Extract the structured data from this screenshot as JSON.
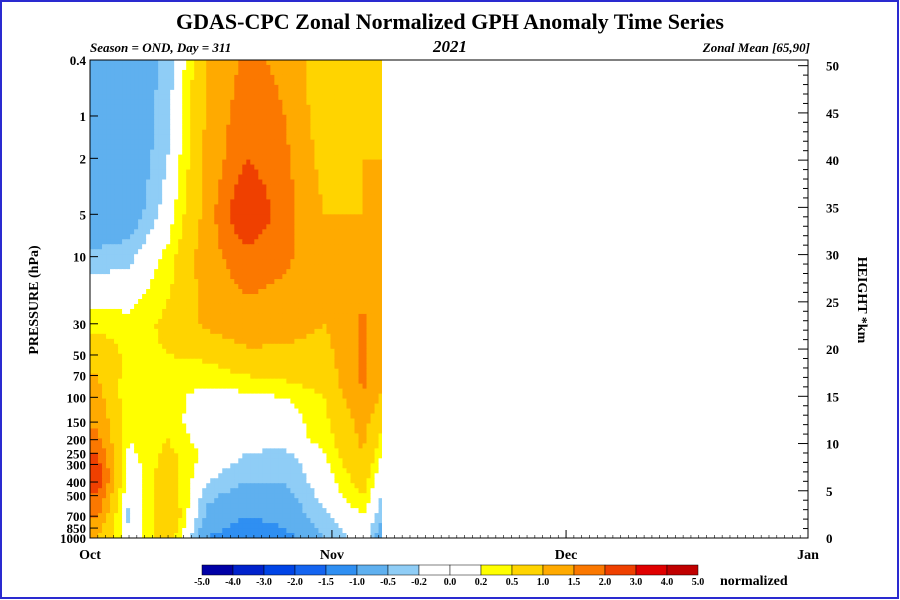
{
  "header": {
    "title": "GDAS-CPC Zonal Normalized GPH Anomaly Time Series",
    "left_subtitle": "Season = OND, Day = 311",
    "center_subtitle": "2021",
    "right_subtitle": "Zonal Mean [65,90]"
  },
  "colors": {
    "frame": "#2a2ad0",
    "neg_dark": [
      "#0000a6",
      "#0033dd",
      "#1464f0",
      "#2f8ff2",
      "#5fb0ef",
      "#8fcdf6",
      "#ffffff"
    ],
    "pos": [
      "#ffffff",
      "#ffff00",
      "#ffd400",
      "#ffaa00",
      "#fb7800",
      "#ef4000",
      "#e00000",
      "#c00000"
    ]
  },
  "chart_data": {
    "type": "heatmap",
    "title": "GDAS-CPC Zonal Normalized GPH Anomaly Time Series",
    "xlabel": "",
    "ylabel": "PRESSURE (hPa)",
    "y2label": "HEIGHT *km",
    "x_ticks": [
      "Oct",
      "Nov",
      "Dec",
      "Jan"
    ],
    "y_ticks": [
      "0.4",
      "1",
      "2",
      "5",
      "10",
      "30",
      "50",
      "70",
      "100",
      "150",
      "200",
      "250",
      "300",
      "400",
      "500",
      "700",
      "850",
      "1000"
    ],
    "y2_ticks": [
      "0",
      "5",
      "10",
      "15",
      "20",
      "25",
      "30",
      "35",
      "40",
      "45",
      "50"
    ],
    "colorbar": {
      "labels": [
        "-5.0",
        "-4.0",
        "-3.0",
        "-2.0",
        "-1.5",
        "-1.0",
        "-0.5",
        "-0.2",
        "0.0",
        "0.2",
        "0.5",
        "1.0",
        "1.5",
        "2.0",
        "3.0",
        "4.0",
        "5.0"
      ],
      "colors": [
        "#0000a6",
        "#0022cc",
        "#0044e6",
        "#1464f0",
        "#2f8ff2",
        "#5fb0ef",
        "#8fcdf6",
        "#ffffff",
        "#ffffff",
        "#ffff00",
        "#ffd400",
        "#ffaa00",
        "#fb7800",
        "#ef4000",
        "#e00000",
        "#c00000"
      ],
      "unit": "normalized"
    },
    "data_through": "Nov 7",
    "z_columns_note_days": [
      1,
      5,
      10,
      15,
      20,
      25,
      30,
      35,
      38
    ],
    "z_rows_pressure": [
      0.4,
      1,
      2,
      5,
      10,
      30,
      50,
      70,
      100,
      150,
      200,
      250,
      300,
      400,
      500,
      700,
      850,
      1000
    ],
    "z_values": [
      [
        -0.6,
        -0.8,
        -0.4,
        1.0,
        1.6,
        1.4,
        0.6,
        0.8,
        1.0
      ],
      [
        -0.7,
        -0.9,
        -0.3,
        1.1,
        1.8,
        1.5,
        0.7,
        0.9,
        1.0
      ],
      [
        -0.8,
        -0.9,
        -0.2,
        1.1,
        2.0,
        1.6,
        0.8,
        1.0,
        1.0
      ],
      [
        -0.9,
        -0.8,
        0.0,
        1.2,
        2.6,
        1.7,
        1.0,
        1.0,
        1.0
      ],
      [
        -0.4,
        -0.3,
        0.3,
        1.3,
        1.8,
        1.6,
        1.1,
        1.1,
        1.0
      ],
      [
        0.4,
        0.3,
        0.6,
        1.1,
        1.3,
        1.2,
        1.0,
        1.6,
        1.0
      ],
      [
        0.8,
        0.4,
        0.5,
        0.6,
        0.9,
        0.9,
        0.8,
        1.6,
        1.0
      ],
      [
        1.0,
        0.3,
        0.2,
        0.3,
        0.5,
        0.6,
        0.7,
        1.6,
        1.0
      ],
      [
        1.2,
        0.2,
        0.3,
        0.1,
        0.1,
        0.2,
        0.5,
        1.5,
        0.8
      ],
      [
        1.4,
        0.3,
        0.4,
        -0.1,
        -0.2,
        0.0,
        0.4,
        1.2,
        0.4
      ],
      [
        1.6,
        0.2,
        0.5,
        0.0,
        -0.1,
        0.1,
        0.3,
        1.1,
        0.2
      ],
      [
        2.0,
        0.1,
        0.6,
        0.1,
        -0.2,
        -0.3,
        0.2,
        1.0,
        0.0
      ],
      [
        2.2,
        0.0,
        0.7,
        0.0,
        -0.3,
        -0.4,
        0.1,
        0.9,
        -0.2
      ],
      [
        2.4,
        -0.1,
        0.8,
        -0.2,
        -0.5,
        -0.5,
        0.0,
        0.7,
        -0.3
      ],
      [
        2.0,
        -0.2,
        0.9,
        -0.4,
        -0.7,
        -0.6,
        -0.1,
        0.5,
        -0.4
      ],
      [
        1.6,
        -0.3,
        1.0,
        -0.6,
        -1.0,
        -0.8,
        -0.3,
        0.2,
        -0.6
      ],
      [
        1.2,
        -0.2,
        0.9,
        -0.8,
        -1.2,
        -1.0,
        -0.4,
        0.1,
        -0.8
      ],
      [
        1.0,
        -0.1,
        0.8,
        -1.0,
        -1.5,
        -1.2,
        -0.5,
        0.0,
        -1.0
      ]
    ]
  }
}
